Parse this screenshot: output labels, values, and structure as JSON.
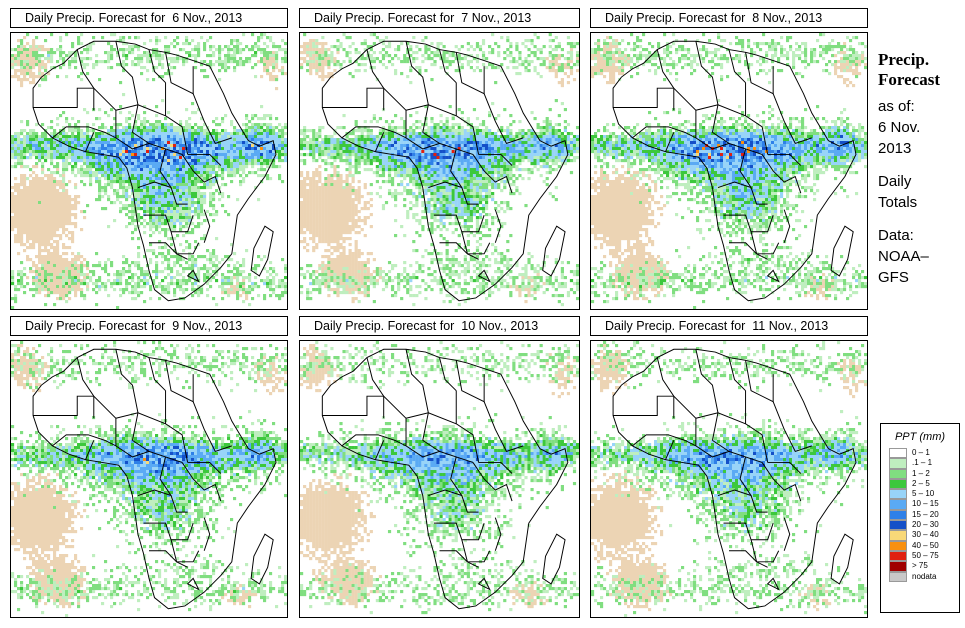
{
  "panels": [
    {
      "title": "Daily Precip. Forecast for  6 Nov., 2013",
      "seed": 11,
      "intensity": 1.15
    },
    {
      "title": "Daily Precip. Forecast for  7 Nov., 2013",
      "seed": 23,
      "intensity": 1.0
    },
    {
      "title": "Daily Precip. Forecast for  8 Nov., 2013",
      "seed": 37,
      "intensity": 1.1
    },
    {
      "title": "Daily Precip. Forecast for  9 Nov., 2013",
      "seed": 41,
      "intensity": 0.95
    },
    {
      "title": "Daily Precip. Forecast for  10 Nov., 2013",
      "seed": 53,
      "intensity": 0.85
    },
    {
      "title": "Daily Precip. Forecast for  11 Nov., 2013",
      "seed": 67,
      "intensity": 0.9
    }
  ],
  "sidebar": {
    "title_line1": "Precip.",
    "title_line2": "Forecast",
    "asof_line1": "as of:",
    "asof_line2": "6 Nov.",
    "asof_line3": "2013",
    "totals_line1": "Daily",
    "totals_line2": "Totals",
    "data_line1": "Data:",
    "data_line2": "NOAA–",
    "data_line3": "GFS"
  },
  "legend": {
    "title": "PPT (mm)",
    "items": [
      {
        "label": "0 – 1",
        "color": "#ffffff"
      },
      {
        "label": ".1 – 1",
        "color": "#bfeebf"
      },
      {
        "label": "1 – 2",
        "color": "#80de80"
      },
      {
        "label": "2 – 5",
        "color": "#3cc83c"
      },
      {
        "label": "5 – 10",
        "color": "#98d4f8"
      },
      {
        "label": "10 – 15",
        "color": "#5aaaf4"
      },
      {
        "label": "15 – 20",
        "color": "#2e80e8"
      },
      {
        "label": "20 – 30",
        "color": "#1450c8"
      },
      {
        "label": "30 – 40",
        "color": "#f8d878"
      },
      {
        "label": "40 – 50",
        "color": "#f89010"
      },
      {
        "label": "50 – 75",
        "color": "#e02010"
      },
      {
        "label": "> 75",
        "color": "#a00000"
      },
      {
        "label": "nodata",
        "color": "#c8c8c8"
      }
    ]
  },
  "colors": {
    "dry": "#ecd4b4",
    "border": "#000000"
  }
}
